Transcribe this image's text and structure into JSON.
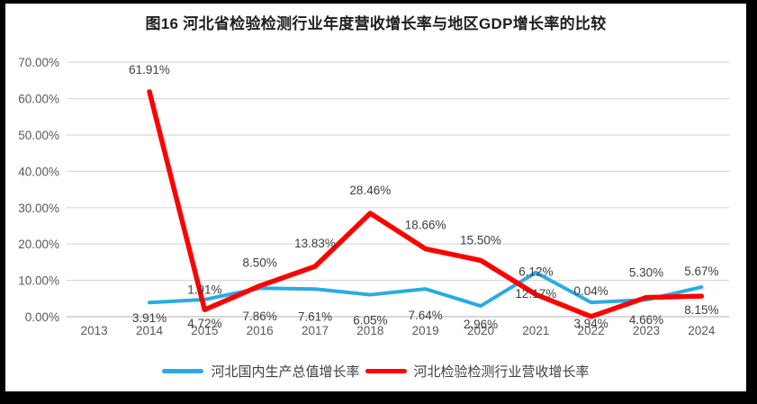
{
  "frame": {
    "background_color": "#000000",
    "panel_color": "#ffffff"
  },
  "chart_data": {
    "type": "line",
    "title": "图16 河北省检验检测行业年度营收增长率与地区GDP增长率的比较",
    "categories": [
      "2013",
      "2014",
      "2015",
      "2016",
      "2017",
      "2018",
      "2019",
      "2020",
      "2021",
      "2022",
      "2023",
      "2024"
    ],
    "y_ticks": [
      "70.00%",
      "60.00%",
      "50.00%",
      "40.00%",
      "30.00%",
      "20.00%",
      "10.00%",
      "0.00%"
    ],
    "ylim": [
      0,
      70
    ],
    "grid": "horizontal",
    "legend_position": "bottom",
    "colors": {
      "gdp_line": "#29abe2",
      "revenue_line": "#fe0000",
      "gridline": "#d9d9d9",
      "axis_line": "#bfbfbf",
      "tick_text": "#595959",
      "label_text": "#3f3f3f"
    },
    "series": [
      {
        "name": "河北国内生产总值增长率",
        "color": "#29abe2",
        "values": [
          null,
          3.91,
          4.72,
          7.86,
          7.61,
          6.05,
          7.64,
          2.96,
          12.17,
          3.94,
          4.66,
          8.15
        ],
        "labels": [
          null,
          "3.91%",
          "4.72%",
          "7.86%",
          "7.61%",
          "6.05%",
          "7.64%",
          "2.96%",
          "12.17%",
          "3.94%",
          "4.66%",
          "8.15%"
        ]
      },
      {
        "name": "河北检验检测行业营收增长率",
        "color": "#fe0000",
        "values": [
          null,
          61.91,
          1.91,
          8.5,
          13.83,
          28.46,
          18.66,
          15.5,
          6.12,
          0.04,
          5.3,
          5.67
        ],
        "labels": [
          null,
          "61.91%",
          "1.91%",
          "8.50%",
          "13.83%",
          "28.46%",
          "18.66%",
          "15.50%",
          "6.12%",
          "0.04%",
          "5.30%",
          "5.67%"
        ]
      }
    ]
  }
}
